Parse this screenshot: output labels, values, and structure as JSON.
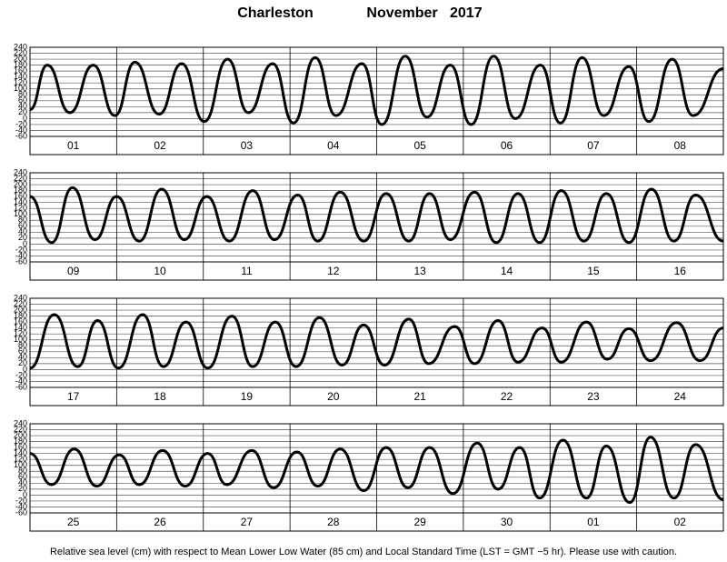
{
  "title": "Charleston",
  "month_year": "November   2017",
  "footnote": "Relative sea level (cm) with respect to Mean Lower Low Water (85 cm) and Local Standard Time (LST = GMT −5 hr). Please use with caution.",
  "chart_data": [
    {
      "type": "line",
      "color": "#000000",
      "grid": true,
      "categories": [
        "01",
        "02",
        "03",
        "04",
        "05",
        "06",
        "07",
        "08"
      ],
      "xlim": [
        0,
        8
      ],
      "ylim": [
        -60,
        240
      ],
      "yticks": [
        -60,
        -40,
        -20,
        0,
        20,
        40,
        60,
        80,
        100,
        120,
        140,
        160,
        180,
        200,
        220,
        240
      ],
      "x": [
        0,
        0.2,
        0.46,
        0.73,
        0.98,
        1.21,
        1.49,
        1.75,
        2.01,
        2.28,
        2.52,
        2.8,
        3.04,
        3.29,
        3.53,
        3.83,
        4.06,
        4.33,
        4.58,
        4.85,
        5.09,
        5.35,
        5.6,
        5.89,
        6.12,
        6.37,
        6.62,
        6.91,
        7.14,
        7.41,
        7.65,
        8
      ],
      "values": [
        30,
        180,
        20,
        180,
        10,
        190,
        15,
        185,
        -10,
        200,
        20,
        185,
        -15,
        205,
        10,
        185,
        -20,
        210,
        5,
        180,
        -20,
        210,
        0,
        180,
        -15,
        205,
        10,
        175,
        -10,
        200,
        10,
        168
      ]
    },
    {
      "type": "line",
      "color": "#000000",
      "grid": true,
      "categories": [
        "09",
        "10",
        "11",
        "12",
        "13",
        "14",
        "15",
        "16"
      ],
      "xlim": [
        0,
        8
      ],
      "ylim": [
        -60,
        240
      ],
      "yticks": [
        -60,
        -40,
        -20,
        0,
        20,
        40,
        60,
        80,
        100,
        120,
        140,
        160,
        180,
        200,
        220,
        240
      ],
      "x": [
        0,
        0.25,
        0.49,
        0.75,
        1.0,
        1.26,
        1.52,
        1.78,
        2.04,
        2.3,
        2.57,
        2.82,
        3.09,
        3.32,
        3.58,
        3.85,
        4.11,
        4.37,
        4.61,
        4.85,
        5.13,
        5.38,
        5.63,
        5.88,
        6.13,
        6.39,
        6.65,
        6.91,
        7.17,
        7.43,
        7.68,
        8
      ],
      "values": [
        160,
        5,
        190,
        15,
        160,
        10,
        185,
        15,
        160,
        10,
        180,
        15,
        165,
        10,
        175,
        10,
        170,
        10,
        170,
        15,
        175,
        5,
        170,
        5,
        180,
        10,
        170,
        5,
        185,
        10,
        165,
        10
      ]
    },
    {
      "type": "line",
      "color": "#000000",
      "grid": true,
      "categories": [
        "17",
        "18",
        "19",
        "20",
        "21",
        "22",
        "23",
        "24"
      ],
      "xlim": [
        0,
        8
      ],
      "ylim": [
        -60,
        240
      ],
      "yticks": [
        -60,
        -40,
        -20,
        0,
        20,
        40,
        60,
        80,
        100,
        120,
        140,
        160,
        180,
        200,
        220,
        240
      ],
      "x": [
        0,
        0.28,
        0.55,
        0.78,
        1.02,
        1.3,
        1.54,
        1.8,
        2.05,
        2.33,
        2.57,
        2.83,
        3.07,
        3.34,
        3.6,
        3.85,
        4.09,
        4.37,
        4.6,
        4.9,
        5.13,
        5.4,
        5.63,
        5.91,
        6.13,
        6.42,
        6.66,
        6.91,
        7.16,
        7.46,
        7.73,
        8
      ],
      "values": [
        5,
        185,
        10,
        165,
        5,
        185,
        10,
        160,
        5,
        180,
        10,
        160,
        10,
        175,
        15,
        150,
        15,
        170,
        20,
        145,
        20,
        165,
        25,
        140,
        25,
        160,
        35,
        138,
        30,
        158,
        30,
        140
      ]
    },
    {
      "type": "line",
      "color": "#000000",
      "grid": true,
      "categories": [
        "25",
        "26",
        "27",
        "28",
        "29",
        "30",
        "01",
        "02"
      ],
      "xlim": [
        0,
        8
      ],
      "ylim": [
        -60,
        240
      ],
      "yticks": [
        -60,
        -40,
        -20,
        0,
        20,
        40,
        60,
        80,
        100,
        120,
        140,
        160,
        180,
        200,
        220,
        240
      ],
      "x": [
        0,
        0.25,
        0.51,
        0.77,
        1.03,
        1.26,
        1.53,
        1.79,
        2.05,
        2.27,
        2.56,
        2.81,
        3.08,
        3.32,
        3.58,
        3.85,
        4.11,
        4.36,
        4.61,
        4.88,
        5.16,
        5.4,
        5.65,
        5.88,
        6.15,
        6.42,
        6.65,
        6.92,
        7.16,
        7.43,
        7.68,
        8
      ],
      "values": [
        140,
        35,
        155,
        30,
        135,
        35,
        150,
        30,
        140,
        35,
        150,
        25,
        145,
        30,
        155,
        15,
        160,
        25,
        160,
        5,
        175,
        20,
        160,
        -10,
        185,
        -10,
        165,
        -25,
        195,
        -10,
        170,
        -15
      ]
    }
  ]
}
